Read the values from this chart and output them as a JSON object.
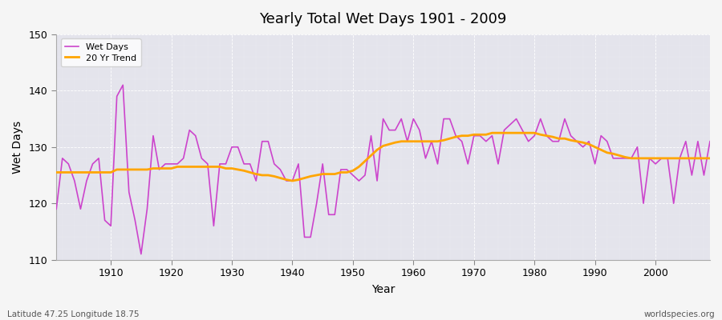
{
  "title": "Yearly Total Wet Days 1901 - 2009",
  "xlabel": "Year",
  "ylabel": "Wet Days",
  "lat_lon_label": "Latitude 47.25 Longitude 18.75",
  "source_label": "worldspecies.org",
  "ylim": [
    110,
    150
  ],
  "xlim": [
    1901,
    2009
  ],
  "yticks": [
    110,
    120,
    130,
    140,
    150
  ],
  "xticks": [
    1910,
    1920,
    1930,
    1940,
    1950,
    1960,
    1970,
    1980,
    1990,
    2000
  ],
  "wet_days_color": "#cc44cc",
  "trend_color": "#FFA500",
  "fig_bg_color": "#f0f0f0",
  "plot_bg_color": "#e0e0e8",
  "grid_color": "#ffffff",
  "wet_days": {
    "1901": 119,
    "1902": 128,
    "1903": 127,
    "1904": 124,
    "1905": 119,
    "1906": 124,
    "1907": 127,
    "1908": 128,
    "1909": 117,
    "1910": 116,
    "1911": 139,
    "1912": 141,
    "1913": 122,
    "1914": 117,
    "1915": 111,
    "1916": 119,
    "1917": 132,
    "1918": 126,
    "1919": 127,
    "1920": 127,
    "1921": 127,
    "1922": 128,
    "1923": 133,
    "1924": 132,
    "1925": 128,
    "1926": 127,
    "1927": 116,
    "1928": 127,
    "1929": 127,
    "1930": 130,
    "1931": 130,
    "1932": 127,
    "1933": 127,
    "1934": 124,
    "1935": 131,
    "1936": 131,
    "1937": 127,
    "1938": 126,
    "1939": 124,
    "1940": 124,
    "1941": 127,
    "1942": 114,
    "1943": 114,
    "1944": 120,
    "1945": 127,
    "1946": 118,
    "1947": 118,
    "1948": 126,
    "1949": 126,
    "1950": 125,
    "1951": 124,
    "1952": 125,
    "1953": 132,
    "1954": 124,
    "1955": 135,
    "1956": 133,
    "1957": 133,
    "1958": 135,
    "1959": 131,
    "1960": 135,
    "1961": 133,
    "1962": 128,
    "1963": 131,
    "1964": 127,
    "1965": 135,
    "1966": 135,
    "1967": 132,
    "1968": 131,
    "1969": 127,
    "1970": 132,
    "1971": 132,
    "1972": 131,
    "1973": 132,
    "1974": 127,
    "1975": 133,
    "1976": 134,
    "1977": 135,
    "1978": 133,
    "1979": 131,
    "1980": 132,
    "1981": 135,
    "1982": 132,
    "1983": 131,
    "1984": 131,
    "1985": 135,
    "1986": 132,
    "1987": 131,
    "1988": 130,
    "1989": 131,
    "1990": 127,
    "1991": 132,
    "1992": 131,
    "1993": 128,
    "1994": 128,
    "1995": 128,
    "1996": 128,
    "1997": 130,
    "1998": 120,
    "1999": 128,
    "2000": 127,
    "2001": 128,
    "2002": 128,
    "2003": 120,
    "2004": 128,
    "2005": 131,
    "2006": 125,
    "2007": 131,
    "2008": 125,
    "2009": 131
  },
  "trend_days": {
    "1901": 125.5,
    "1902": 125.5,
    "1903": 125.5,
    "1904": 125.5,
    "1905": 125.5,
    "1906": 125.5,
    "1907": 125.5,
    "1908": 125.5,
    "1909": 125.5,
    "1910": 125.5,
    "1911": 126.0,
    "1912": 126.0,
    "1913": 126.0,
    "1914": 126.0,
    "1915": 126.0,
    "1916": 126.0,
    "1917": 126.2,
    "1918": 126.2,
    "1919": 126.2,
    "1920": 126.2,
    "1921": 126.5,
    "1922": 126.5,
    "1923": 126.5,
    "1924": 126.5,
    "1925": 126.5,
    "1926": 126.5,
    "1927": 126.5,
    "1928": 126.5,
    "1929": 126.2,
    "1930": 126.2,
    "1931": 126.0,
    "1932": 125.8,
    "1933": 125.5,
    "1934": 125.2,
    "1935": 125.0,
    "1936": 125.0,
    "1937": 124.8,
    "1938": 124.5,
    "1939": 124.2,
    "1940": 124.0,
    "1941": 124.2,
    "1942": 124.5,
    "1943": 124.8,
    "1944": 125.0,
    "1945": 125.2,
    "1946": 125.2,
    "1947": 125.2,
    "1948": 125.5,
    "1949": 125.5,
    "1950": 125.8,
    "1951": 126.5,
    "1952": 127.5,
    "1953": 128.5,
    "1954": 129.5,
    "1955": 130.2,
    "1956": 130.5,
    "1957": 130.8,
    "1958": 131.0,
    "1959": 131.0,
    "1960": 131.0,
    "1961": 131.0,
    "1962": 131.0,
    "1963": 131.0,
    "1964": 131.0,
    "1965": 131.2,
    "1966": 131.5,
    "1967": 131.8,
    "1968": 132.0,
    "1969": 132.0,
    "1970": 132.2,
    "1971": 132.2,
    "1972": 132.2,
    "1973": 132.5,
    "1974": 132.5,
    "1975": 132.5,
    "1976": 132.5,
    "1977": 132.5,
    "1978": 132.5,
    "1979": 132.5,
    "1980": 132.5,
    "1981": 132.2,
    "1982": 132.0,
    "1983": 131.8,
    "1984": 131.5,
    "1985": 131.5,
    "1986": 131.2,
    "1987": 131.0,
    "1988": 130.8,
    "1989": 130.5,
    "1990": 130.0,
    "1991": 129.5,
    "1992": 129.0,
    "1993": 128.8,
    "1994": 128.5,
    "1995": 128.2,
    "1996": 128.0,
    "1997": 128.0,
    "1998": 128.0,
    "1999": 128.0,
    "2000": 128.0,
    "2001": 128.0,
    "2002": 128.0,
    "2003": 128.0,
    "2004": 128.0,
    "2005": 128.0,
    "2006": 128.0,
    "2007": 128.0,
    "2008": 128.0,
    "2009": 128.0
  }
}
